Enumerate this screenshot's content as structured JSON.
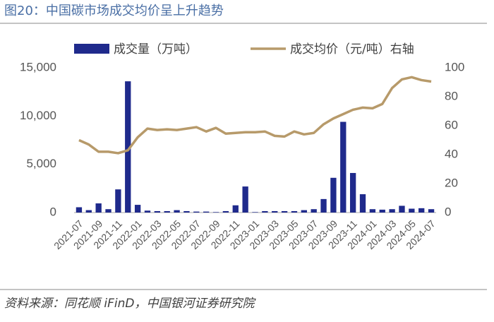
{
  "chart_data": {
    "type": "bar_line",
    "title": "图20：中国碳市场成交均价呈上升趋势",
    "source": "资料来源：同花顺 iFinD，中国银河证券研究院",
    "categories": [
      "2021-07",
      null,
      "2021-09",
      null,
      "2021-11",
      null,
      "2022-01",
      null,
      "2022-03",
      null,
      "2022-05",
      null,
      "2022-07",
      null,
      "2022-09",
      null,
      "2022-11",
      null,
      "2023-01",
      null,
      "2023-03",
      null,
      "2023-05",
      null,
      "2023-07",
      null,
      "2023-09",
      null,
      "2023-11",
      null,
      "2024-01",
      null,
      "2024-03",
      null,
      "2024-05",
      null,
      "2024-07"
    ],
    "series": [
      {
        "name": "成交量（万吨）",
        "color": "#1f2a8c",
        "type": "bar",
        "values": [
          550,
          250,
          950,
          350,
          2400,
          13600,
          800,
          200,
          150,
          150,
          250,
          150,
          100,
          100,
          50,
          150,
          750,
          2700,
          50,
          150,
          150,
          150,
          150,
          250,
          350,
          1400,
          3600,
          9400,
          4100,
          1900,
          350,
          300,
          350,
          700,
          400,
          450,
          350
        ]
      },
      {
        "name": "成交均价（元/吨）右轴",
        "color": "#b79a6a",
        "type": "line",
        "axis": "y2",
        "values": [
          50,
          47,
          42,
          42,
          41,
          43,
          52,
          58,
          57,
          57.5,
          57,
          58,
          59,
          56,
          58.5,
          54.5,
          55,
          55.5,
          55.5,
          56,
          53,
          52.5,
          56,
          54,
          55,
          61,
          65,
          68,
          71,
          72.5,
          72,
          75,
          86,
          92,
          93.5,
          91.5,
          90.5
        ]
      }
    ],
    "ylim": [
      0,
      15000
    ],
    "yticks": [
      {
        "value": 0,
        "label": "0"
      },
      {
        "value": 5000,
        "label": "5,000"
      },
      {
        "value": 10000,
        "label": "10,000"
      },
      {
        "value": 15000,
        "label": "15,000"
      }
    ],
    "y2lim": [
      0,
      100
    ],
    "y2ticks": [
      0,
      20,
      40,
      60,
      80,
      100
    ],
    "grid": false
  }
}
